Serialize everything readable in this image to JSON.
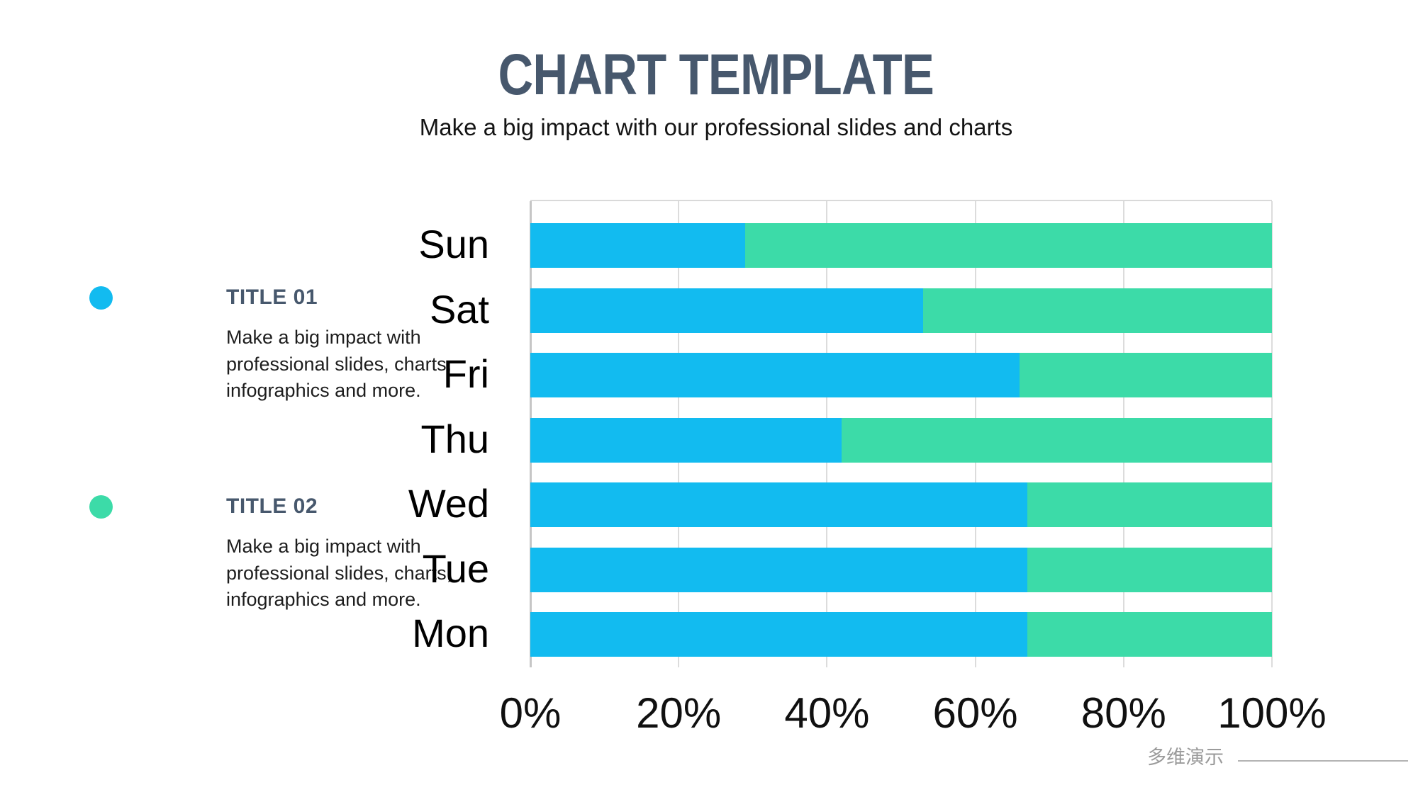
{
  "header": {
    "title": "CHART TEMPLATE",
    "subtitle": "Make a big impact with our professional slides and charts"
  },
  "legend": {
    "items": [
      {
        "label": "TITLE 01",
        "description": "Make a big impact with professional slides, charts, infographics and more.",
        "color": "#12BBF0"
      },
      {
        "label": "TITLE 02",
        "description": "Make a big impact with professional slides, charts, infographics and more.",
        "color": "#3CDBA8"
      }
    ]
  },
  "chart_data": {
    "type": "bar",
    "orientation": "horizontal",
    "stacked": true,
    "categories": [
      "Sun",
      "Sat",
      "Fri",
      "Thu",
      "Wed",
      "Tue",
      "Mon"
    ],
    "series": [
      {
        "name": "TITLE 01",
        "color": "#12BBF0",
        "values": [
          29,
          53,
          66,
          42,
          67,
          67,
          67
        ]
      },
      {
        "name": "TITLE 02",
        "color": "#3CDBA8",
        "values": [
          71,
          47,
          34,
          58,
          33,
          33,
          33
        ]
      }
    ],
    "x_ticks": [
      "0%",
      "20%",
      "40%",
      "60%",
      "80%",
      "100%"
    ],
    "xlim": [
      0,
      100
    ],
    "unit": "%",
    "grid": "vertical-only",
    "gridline_color": "#dcdcdc",
    "legend_position": "left"
  },
  "footer": {
    "brand": "多维演示"
  }
}
